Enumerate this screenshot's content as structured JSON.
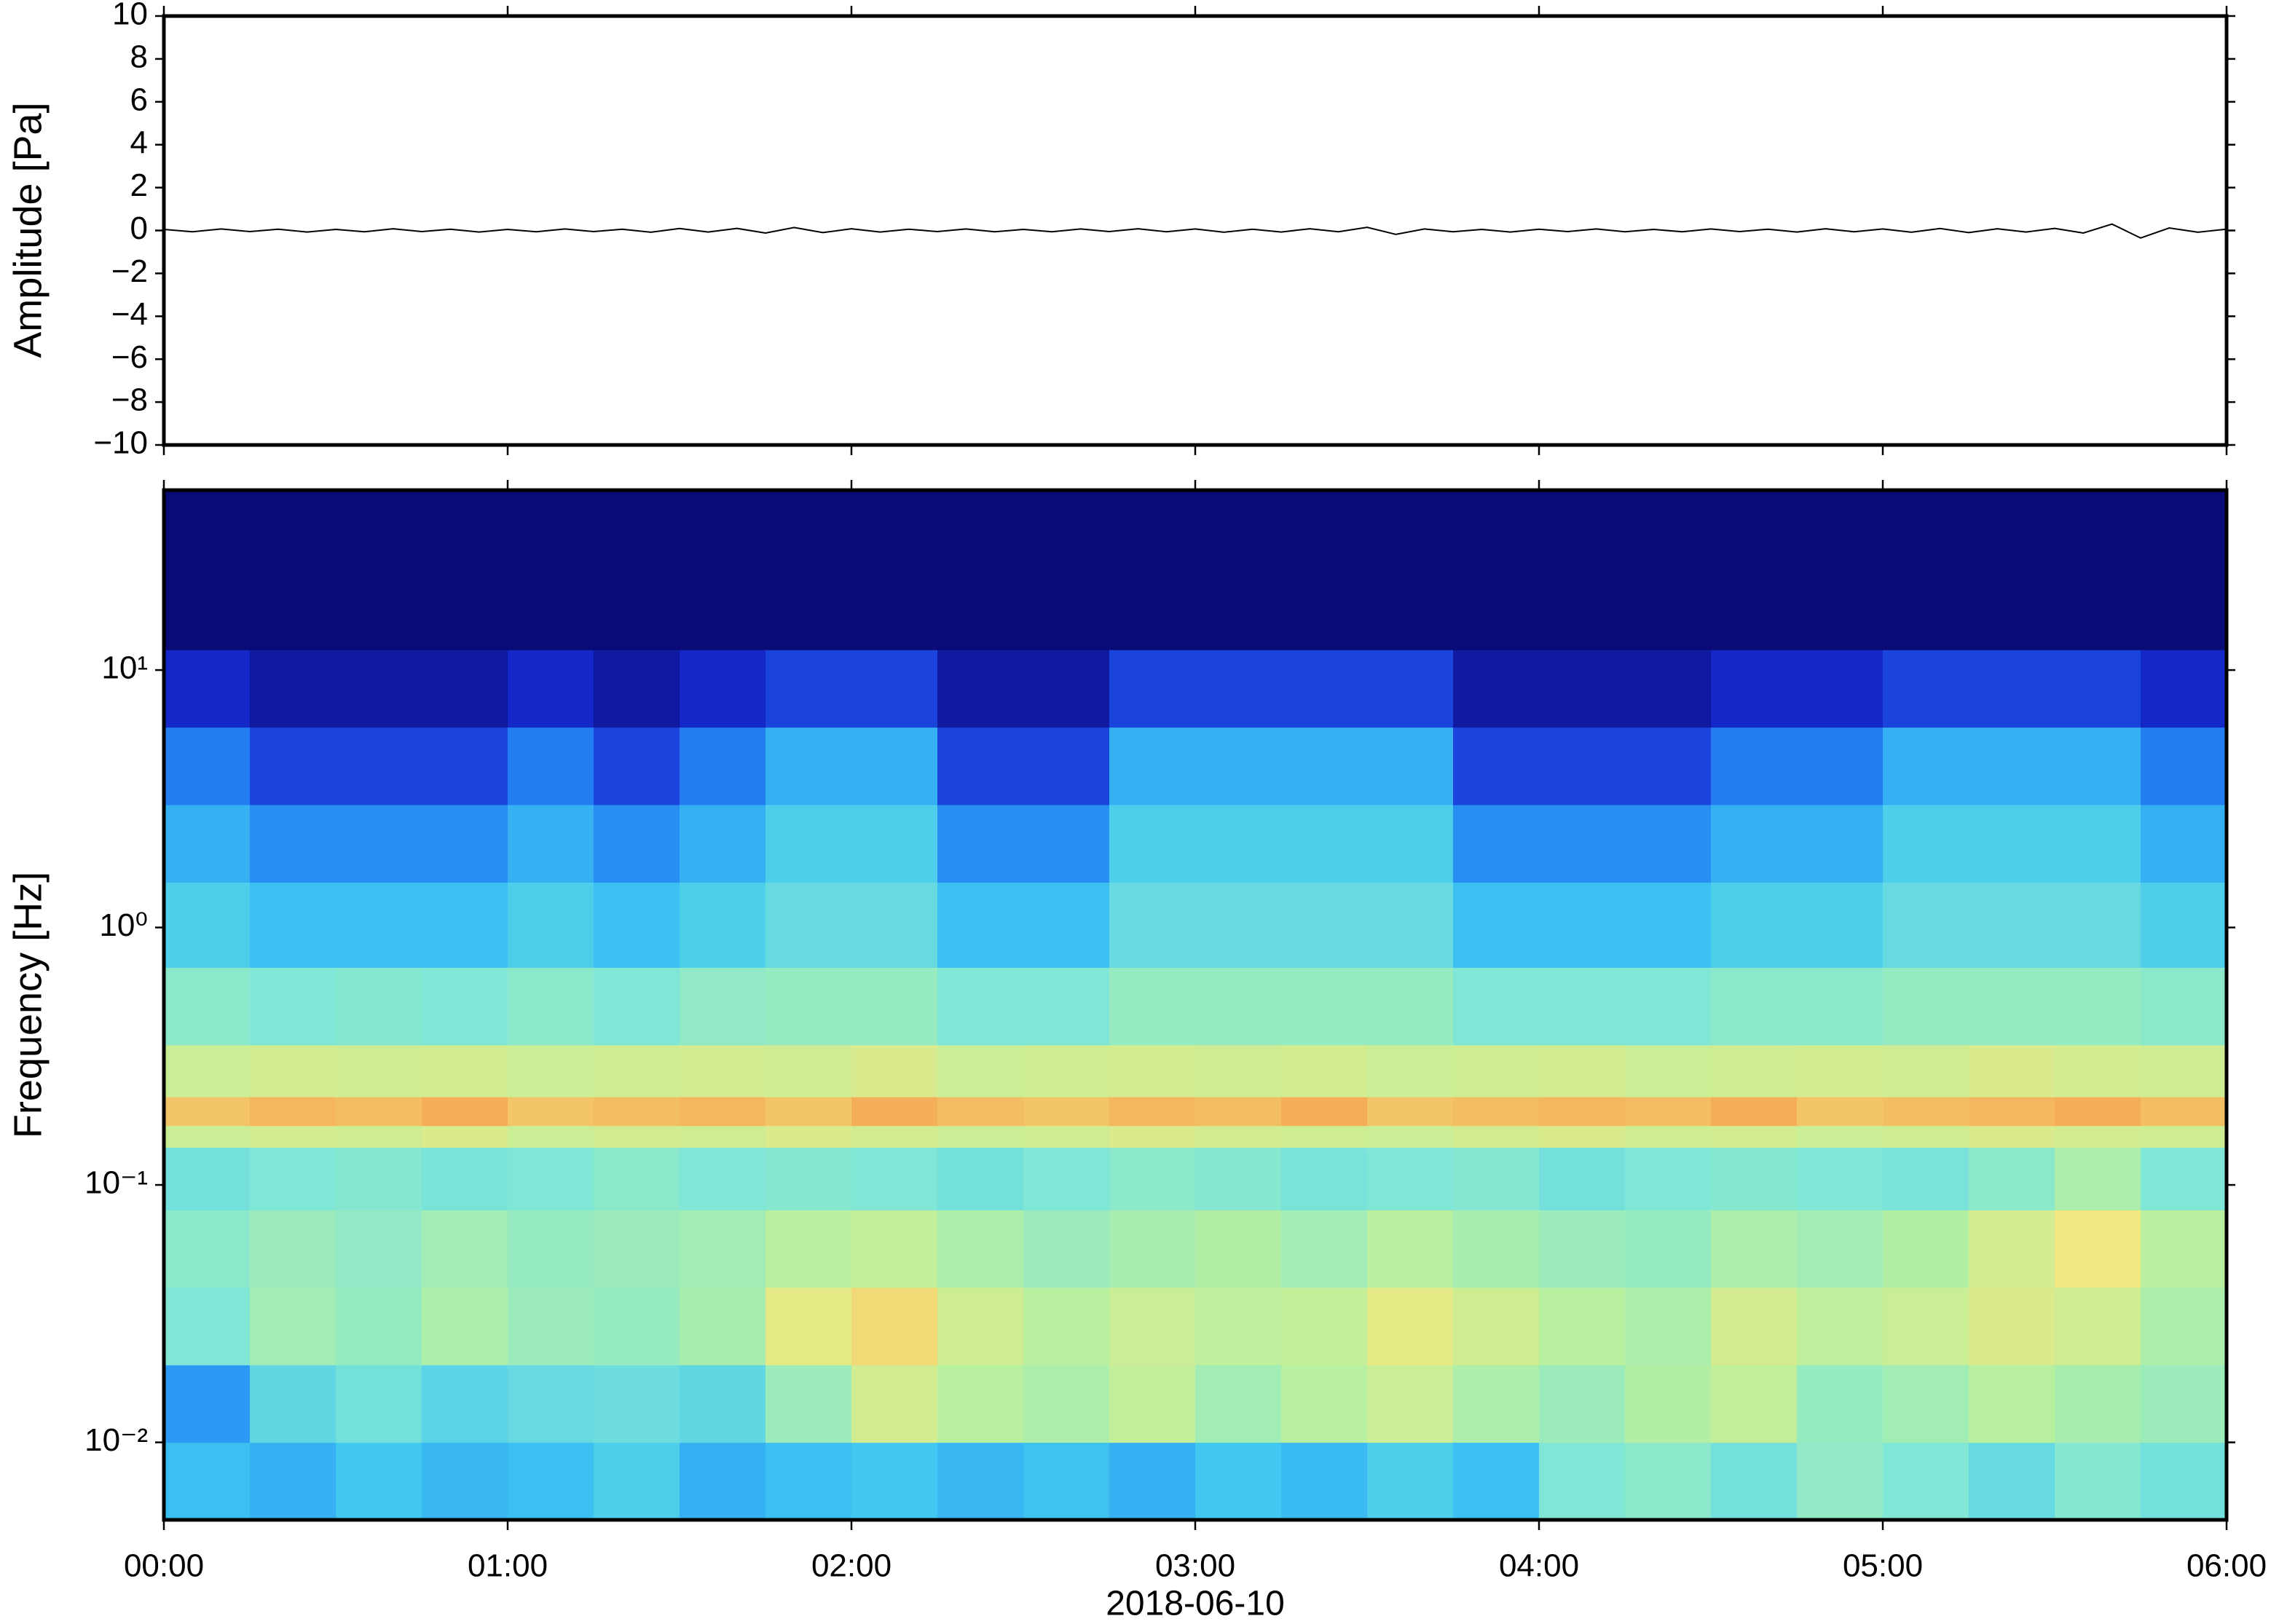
{
  "chart_data": [
    {
      "type": "line",
      "ylabel": "Amplitude [Pa]",
      "color": "#000000",
      "x": [
        0,
        5,
        10,
        15,
        20,
        25,
        30,
        35,
        40,
        45,
        50,
        55,
        60,
        65,
        70,
        75,
        80,
        85,
        90,
        95,
        100,
        105,
        110,
        115,
        120,
        125,
        130,
        135,
        140,
        145,
        150,
        155,
        160,
        165,
        170,
        175,
        180,
        185,
        190,
        195,
        200,
        205,
        210,
        215,
        220,
        225,
        230,
        235,
        240,
        245,
        250,
        255,
        260,
        265,
        270,
        275,
        280,
        285,
        290,
        295,
        300,
        305,
        310,
        315,
        320,
        325,
        330,
        335,
        340,
        345,
        350,
        355,
        360
      ],
      "values": [
        0.05,
        -0.06,
        0.07,
        -0.05,
        0.06,
        -0.07,
        0.05,
        -0.06,
        0.08,
        -0.05,
        0.06,
        -0.07,
        0.05,
        -0.06,
        0.07,
        -0.05,
        0.06,
        -0.08,
        0.09,
        -0.07,
        0.1,
        -0.12,
        0.14,
        -0.1,
        0.08,
        -0.07,
        0.06,
        -0.05,
        0.07,
        -0.06,
        0.05,
        -0.06,
        0.07,
        -0.05,
        0.08,
        -0.06,
        0.07,
        -0.08,
        0.06,
        -0.07,
        0.08,
        -0.06,
        0.15,
        -0.18,
        0.07,
        -0.06,
        0.05,
        -0.07,
        0.06,
        -0.05,
        0.07,
        -0.06,
        0.05,
        -0.06,
        0.07,
        -0.05,
        0.06,
        -0.07,
        0.08,
        -0.06,
        0.07,
        -0.08,
        0.09,
        -0.1,
        0.08,
        -0.07,
        0.1,
        -0.12,
        0.3,
        -0.35,
        0.12,
        -0.08,
        0.06
      ],
      "xlim": [
        0,
        360
      ],
      "xticks": [
        {
          "value": 0,
          "label": "00:00"
        },
        {
          "value": 60,
          "label": "01:00"
        },
        {
          "value": 120,
          "label": "02:00"
        },
        {
          "value": 180,
          "label": "03:00"
        },
        {
          "value": 240,
          "label": "04:00"
        },
        {
          "value": 300,
          "label": "05:00"
        },
        {
          "value": 360,
          "label": "06:00"
        }
      ],
      "ylim": [
        -10,
        10
      ],
      "yticks": [
        {
          "value": -10,
          "label": "−10"
        },
        {
          "value": -8,
          "label": "−8"
        },
        {
          "value": -6,
          "label": "−6"
        },
        {
          "value": -4,
          "label": "−4"
        },
        {
          "value": -2,
          "label": "−2"
        },
        0,
        2,
        4,
        6,
        8,
        10
      ]
    },
    {
      "type": "heatmap",
      "ylabel": "Frequency [Hz]",
      "xlabel": "2018-06-10",
      "log_y": true,
      "xlim": [
        0,
        360
      ],
      "xticks": [
        {
          "value": 0,
          "label": "00:00"
        },
        {
          "value": 60,
          "label": "01:00"
        },
        {
          "value": 120,
          "label": "02:00"
        },
        {
          "value": 180,
          "label": "03:00"
        },
        {
          "value": 240,
          "label": "04:00"
        },
        {
          "value": 300,
          "label": "05:00"
        },
        {
          "value": 360,
          "label": "06:00"
        }
      ],
      "ylim": [
        0.005,
        50
      ],
      "yticks": [
        {
          "value": 0.01,
          "label": "10⁻²"
        },
        {
          "value": 0.1,
          "label": "10⁻¹"
        },
        {
          "value": 1,
          "label": "10⁰"
        },
        {
          "value": 10,
          "label": "10¹"
        }
      ],
      "x_edges": [
        0,
        15,
        30,
        45,
        60,
        75,
        90,
        105,
        120,
        135,
        150,
        165,
        180,
        195,
        210,
        225,
        240,
        255,
        270,
        285,
        300,
        315,
        330,
        345,
        360
      ],
      "y_edges": [
        0.005,
        0.01,
        0.02,
        0.04,
        0.08,
        0.14,
        0.17,
        0.22,
        0.35,
        0.7,
        1.5,
        3,
        6,
        12,
        50
      ],
      "zlim": [
        0,
        10
      ],
      "colormap": [
        "#0b0b78",
        "#1428c8",
        "#1f60ef",
        "#2a9af5",
        "#40c8f0",
        "#80e6d6",
        "#b8f0a0",
        "#f0e880",
        "#f5a050",
        "#e85030",
        "#b01010"
      ],
      "values": [
        [
          3.8,
          3.5,
          4.0,
          3.6,
          3.8,
          4.2,
          3.5,
          3.8,
          4.0,
          3.6,
          3.9,
          3.5,
          4.0,
          3.7,
          4.2,
          3.8,
          5.0,
          5.2,
          4.8,
          5.3,
          5.0,
          4.6,
          5.1,
          4.8
        ],
        [
          3.0,
          4.5,
          4.8,
          4.4,
          4.6,
          4.7,
          4.5,
          5.5,
          6.5,
          6.0,
          5.8,
          6.2,
          5.6,
          6.0,
          6.3,
          5.8,
          5.5,
          5.9,
          6.2,
          5.4,
          5.6,
          6.0,
          5.7,
          5.5
        ],
        [
          5.0,
          5.6,
          5.4,
          5.8,
          5.5,
          5.4,
          5.7,
          6.8,
          7.2,
          6.4,
          6.0,
          6.3,
          6.1,
          6.2,
          6.8,
          6.4,
          6.0,
          5.8,
          6.5,
          6.1,
          6.3,
          6.6,
          6.4,
          5.8
        ],
        [
          5.2,
          5.5,
          5.3,
          5.6,
          5.4,
          5.5,
          5.6,
          6.0,
          6.2,
          5.8,
          5.5,
          5.7,
          5.9,
          5.6,
          6.0,
          5.7,
          5.5,
          5.4,
          5.8,
          5.6,
          5.9,
          6.5,
          7.0,
          6.0
        ],
        [
          4.8,
          5.0,
          5.1,
          4.9,
          5.0,
          5.2,
          5.0,
          5.1,
          5.0,
          4.8,
          5.0,
          5.2,
          5.1,
          4.9,
          5.0,
          5.1,
          4.8,
          5.0,
          5.1,
          5.0,
          4.9,
          5.2,
          5.8,
          5.0
        ],
        [
          6.3,
          6.5,
          6.4,
          6.6,
          6.3,
          6.5,
          6.4,
          6.6,
          6.5,
          6.3,
          6.4,
          6.6,
          6.5,
          6.4,
          6.3,
          6.5,
          6.6,
          6.4,
          6.5,
          6.3,
          6.4,
          6.6,
          6.5,
          6.4
        ],
        [
          7.5,
          7.7,
          7.6,
          7.8,
          7.5,
          7.6,
          7.7,
          7.5,
          7.8,
          7.6,
          7.5,
          7.7,
          7.6,
          7.8,
          7.5,
          7.6,
          7.7,
          7.6,
          7.8,
          7.5,
          7.6,
          7.7,
          7.8,
          7.6
        ],
        [
          6.3,
          6.5,
          6.4,
          6.5,
          6.3,
          6.4,
          6.5,
          6.4,
          6.6,
          6.3,
          6.4,
          6.5,
          6.4,
          6.5,
          6.3,
          6.4,
          6.5,
          6.3,
          6.4,
          6.5,
          6.4,
          6.6,
          6.5,
          6.4
        ],
        [
          5.2,
          5.0,
          5.1,
          5.0,
          5.2,
          5.0,
          5.3,
          5.4,
          5.4,
          5.0,
          5.0,
          5.4,
          5.4,
          5.4,
          5.4,
          5.0,
          5.0,
          5.0,
          5.2,
          5.2,
          5.4,
          5.4,
          5.4,
          5.2
        ],
        [
          4.2,
          3.8,
          3.8,
          3.8,
          4.2,
          3.8,
          4.2,
          4.6,
          4.6,
          3.8,
          3.8,
          4.6,
          4.6,
          4.6,
          4.6,
          3.8,
          3.8,
          3.8,
          4.2,
          4.2,
          4.6,
          4.6,
          4.6,
          4.2
        ],
        [
          3.5,
          2.8,
          2.8,
          2.8,
          3.5,
          2.8,
          3.5,
          4.2,
          4.2,
          2.8,
          2.8,
          4.2,
          4.2,
          4.2,
          4.2,
          2.8,
          2.8,
          2.8,
          3.5,
          3.5,
          4.2,
          4.2,
          4.2,
          3.5
        ],
        [
          2.5,
          1.5,
          1.5,
          1.5,
          2.5,
          1.5,
          2.5,
          3.5,
          3.5,
          1.5,
          1.5,
          3.5,
          3.5,
          3.5,
          3.5,
          1.5,
          1.5,
          1.5,
          2.5,
          2.5,
          3.5,
          3.5,
          3.5,
          2.5
        ],
        [
          1.0,
          0.5,
          0.5,
          0.5,
          1.0,
          0.5,
          1.0,
          1.5,
          1.5,
          0.5,
          0.5,
          1.5,
          1.5,
          1.5,
          1.5,
          0.5,
          0.5,
          0.5,
          1.0,
          1.0,
          1.5,
          1.5,
          1.5,
          1.0
        ],
        [
          0,
          0,
          0,
          0,
          0,
          0,
          0,
          0,
          0,
          0,
          0,
          0,
          0,
          0,
          0,
          0,
          0,
          0,
          0,
          0,
          0,
          0,
          0,
          0
        ]
      ]
    }
  ]
}
